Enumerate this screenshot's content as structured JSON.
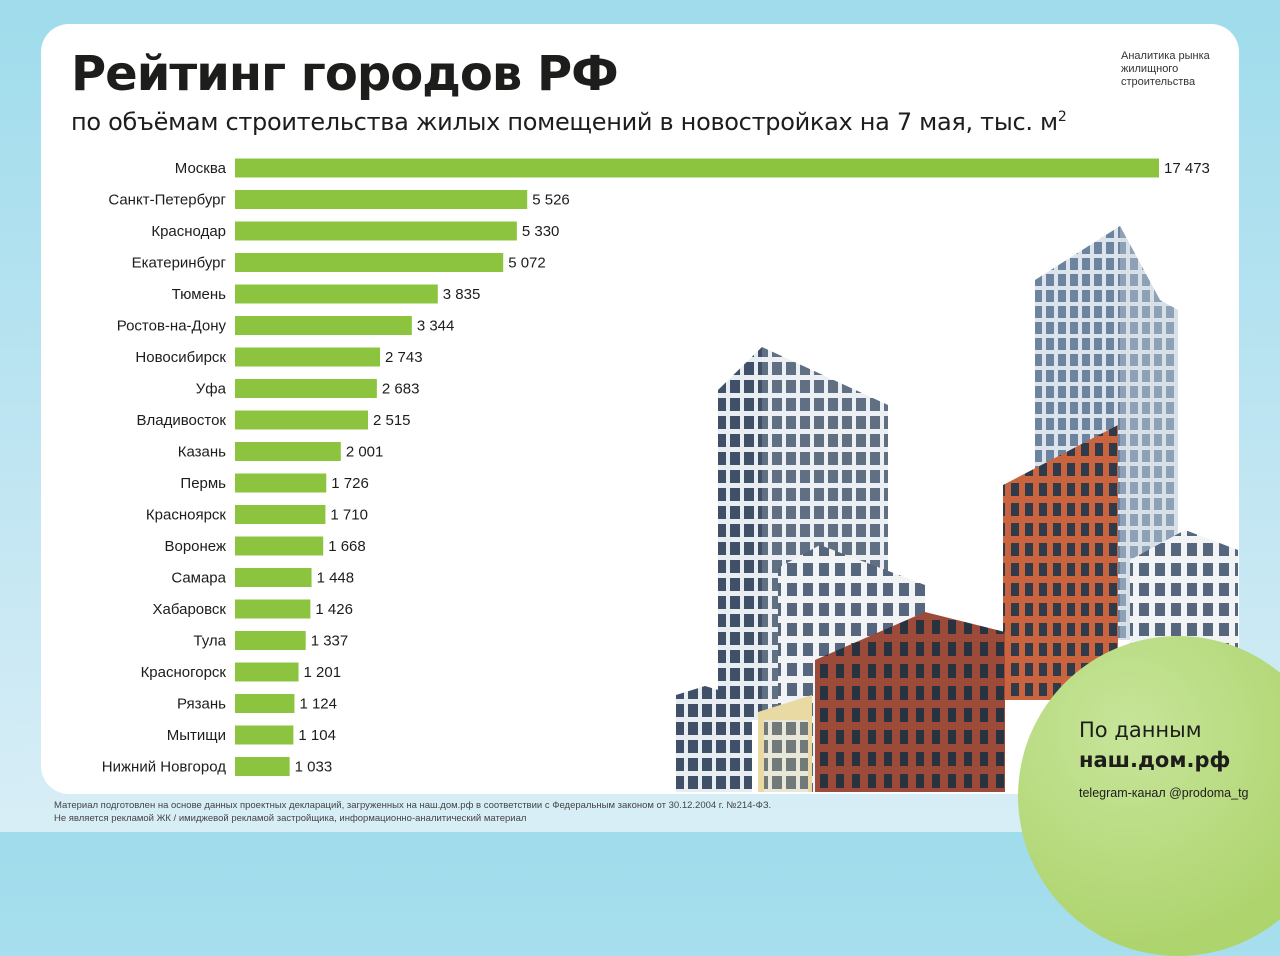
{
  "header": {
    "title": "Рейтинг городов РФ",
    "subtitle": "по объёмам строительства жилых помещений в новостройках на 7 мая, тыс. м",
    "subtitle_sup": "2",
    "brand": "Аналитика рынка жилищного строительства"
  },
  "source": {
    "label": "По данным",
    "site": "наш.дом.рф",
    "telegram": "telegram-канал @prodoma_tg"
  },
  "footer": {
    "line1": "Материал подготовлен на основе данных проектных деклараций, загруженных на наш.дом.рф в соответствии с Федеральным законом от 30.12.2004 г. №214-ФЗ.",
    "line2": "Не является рекламой ЖК / имиджевой рекламой застройщика, информационно-аналитический материал"
  },
  "colors": {
    "bar": "#8dc43f",
    "background": "#a8dfee",
    "accent_circle": "#b2d676"
  },
  "chart_data": {
    "type": "bar",
    "orientation": "horizontal",
    "title": "Рейтинг городов РФ",
    "unit": "тыс. м²",
    "categories": [
      "Москва",
      "Санкт-Петербург",
      "Краснодар",
      "Екатеринбург",
      "Тюмень",
      "Ростов-на-Дону",
      "Новосибирск",
      "Уфа",
      "Владивосток",
      "Казань",
      "Пермь",
      "Красноярск",
      "Воронеж",
      "Самара",
      "Хабаровск",
      "Тула",
      "Красногорск",
      "Рязань",
      "Мытищи",
      "Нижний Новгород"
    ],
    "values": [
      17473,
      5526,
      5330,
      5072,
      3835,
      3344,
      2743,
      2683,
      2515,
      2001,
      1726,
      1710,
      1668,
      1448,
      1426,
      1337,
      1201,
      1124,
      1104,
      1033
    ],
    "value_labels": [
      "17 473",
      "5 526",
      "5 330",
      "5 072",
      "3 835",
      "3 344",
      "2 743",
      "2 683",
      "2 515",
      "2 001",
      "1 726",
      "1 710",
      "1 668",
      "1 448",
      "1 426",
      "1 337",
      "1 201",
      "1 124",
      "1 104",
      "1 033"
    ],
    "xlim": [
      0,
      17473
    ],
    "grid": false,
    "legend": "none"
  }
}
